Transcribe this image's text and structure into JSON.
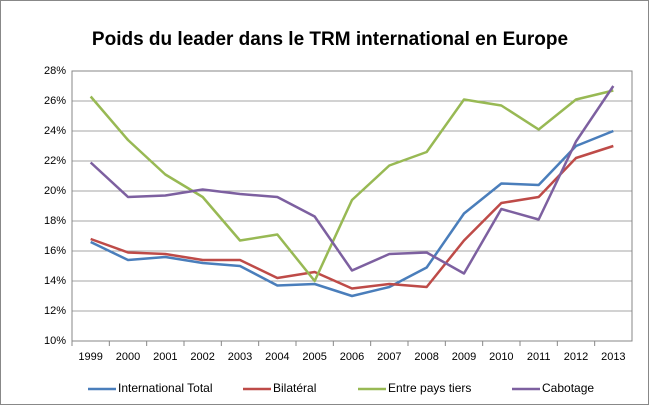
{
  "chart_data": {
    "type": "line",
    "title": "Poids du leader dans le TRM international en Europe",
    "categories": [
      "1999",
      "2000",
      "2001",
      "2002",
      "2003",
      "2004",
      "2005",
      "2006",
      "2007",
      "2008",
      "2009",
      "2010",
      "2011",
      "2012",
      "2013"
    ],
    "series": [
      {
        "name": "International Total",
        "color": "#4a7ebb",
        "values": [
          16.6,
          15.4,
          15.6,
          15.2,
          15.0,
          13.7,
          13.8,
          13.0,
          13.6,
          14.9,
          18.5,
          20.5,
          20.4,
          23.0,
          24.0
        ]
      },
      {
        "name": "Bilatéral",
        "color": "#be4b48",
        "values": [
          16.8,
          15.9,
          15.8,
          15.4,
          15.4,
          14.2,
          14.6,
          13.5,
          13.8,
          13.6,
          16.7,
          19.2,
          19.6,
          22.2,
          23.0
        ]
      },
      {
        "name": "Entre pays tiers",
        "color": "#98b954",
        "values": [
          26.3,
          23.4,
          21.1,
          19.6,
          16.7,
          17.1,
          14.0,
          19.4,
          21.7,
          22.6,
          26.1,
          25.7,
          24.1,
          26.1,
          26.7
        ]
      },
      {
        "name": "Cabotage",
        "color": "#7d60a0",
        "values": [
          21.9,
          19.6,
          19.7,
          20.1,
          19.8,
          19.6,
          18.3,
          14.7,
          15.8,
          15.9,
          14.5,
          18.8,
          18.1,
          23.3,
          27.0
        ]
      }
    ],
    "ylim": [
      10,
      28
    ],
    "yticks": [
      {
        "value": 10,
        "label": "10%"
      },
      {
        "value": 12,
        "label": "12%"
      },
      {
        "value": 14,
        "label": "14%"
      },
      {
        "value": 16,
        "label": "16%"
      },
      {
        "value": 18,
        "label": "18%"
      },
      {
        "value": 20,
        "label": "20%"
      },
      {
        "value": 22,
        "label": "22%"
      },
      {
        "value": 24,
        "label": "24%"
      },
      {
        "value": 26,
        "label": "26%"
      },
      {
        "value": 28,
        "label": "28%"
      }
    ],
    "grid": true,
    "legend": "bottom"
  }
}
